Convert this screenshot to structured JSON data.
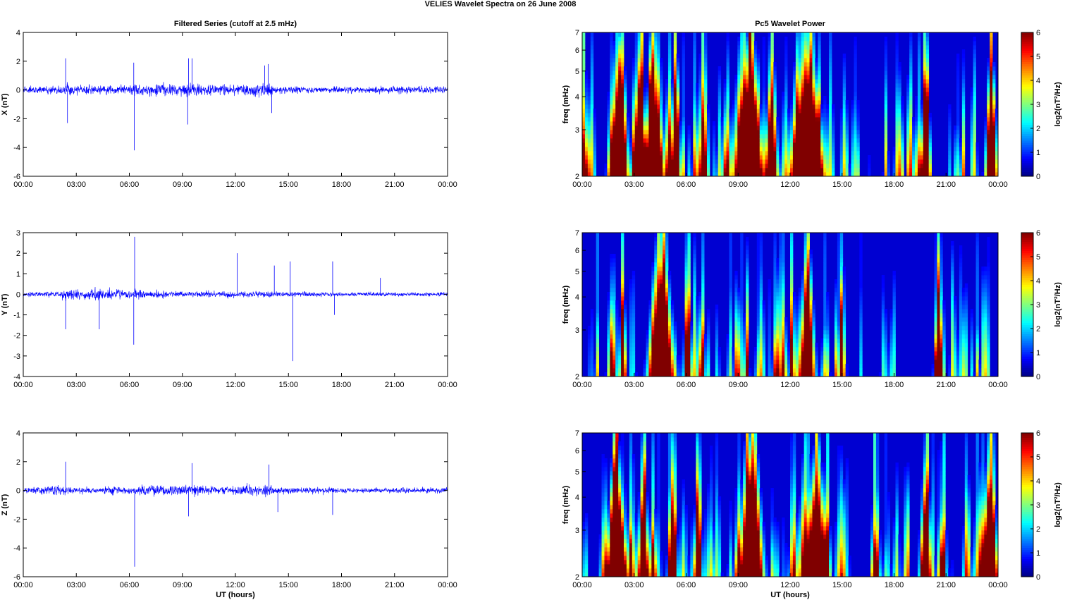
{
  "figure": {
    "suptitle": "VELIES Wavelet Spectra on 26 June      2008",
    "left_title": "Filtered Series (cutoff at 2.5 mHz)",
    "right_title": "Pc5 Wavelet Power"
  },
  "chart_data": [
    {
      "type": "line",
      "title": "Filtered Series (cutoff at 2.5 mHz)",
      "ylabel": "X (nT)",
      "xlabel": "",
      "xlim": [
        0,
        24
      ],
      "ylim": [
        -6,
        4
      ],
      "xtick_labels": [
        "00:00",
        "03:00",
        "06:00",
        "09:00",
        "12:00",
        "15:00",
        "18:00",
        "21:00",
        "00:00"
      ],
      "ytick_labels": [
        "-6",
        "-4",
        "-2",
        "0",
        "2",
        "4"
      ],
      "line_color": "#0000ff",
      "base_amplitude": 0.22,
      "envelope": [
        [
          0,
          0.9
        ],
        [
          2.2,
          1.0
        ],
        [
          2.4,
          1.8
        ],
        [
          3,
          1.0
        ],
        [
          5,
          1.0
        ],
        [
          6.3,
          1.4
        ],
        [
          9.2,
          1.5
        ],
        [
          9.6,
          1.5
        ],
        [
          11,
          1.2
        ],
        [
          12.3,
          1.4
        ],
        [
          13.7,
          1.7
        ],
        [
          14.6,
          0.9
        ],
        [
          16,
          0.7
        ],
        [
          20,
          0.8
        ],
        [
          23.9,
          0.9
        ]
      ],
      "spikes": [
        [
          2.4,
          2.2
        ],
        [
          2.5,
          -2.3
        ],
        [
          6.28,
          -4.2
        ],
        [
          6.25,
          1.9
        ],
        [
          9.35,
          2.2
        ],
        [
          9.3,
          -2.4
        ],
        [
          9.55,
          2.2
        ],
        [
          13.65,
          1.7
        ],
        [
          13.85,
          1.8
        ],
        [
          14.05,
          -1.6
        ],
        [
          24,
          1.2
        ]
      ]
    },
    {
      "type": "line",
      "title": "",
      "ylabel": "Y (nT)",
      "xlabel": "",
      "xlim": [
        0,
        24
      ],
      "ylim": [
        -4,
        3
      ],
      "xtick_labels": [
        "00:00",
        "03:00",
        "06:00",
        "09:00",
        "12:00",
        "15:00",
        "18:00",
        "21:00",
        "00:00"
      ],
      "ytick_labels": [
        "-4",
        "-3",
        "-2",
        "-1",
        "0",
        "1",
        "2",
        "3"
      ],
      "line_color": "#0000ff",
      "base_amplitude": 0.2,
      "envelope": [
        [
          0,
          0.35
        ],
        [
          2,
          0.5
        ],
        [
          2.6,
          1.1
        ],
        [
          3.5,
          0.9
        ],
        [
          4.2,
          1.3
        ],
        [
          5,
          0.9
        ],
        [
          6.3,
          0.8
        ],
        [
          9,
          0.5
        ],
        [
          12,
          0.6
        ],
        [
          15,
          0.5
        ],
        [
          18,
          0.35
        ],
        [
          21,
          0.35
        ],
        [
          23.9,
          0.35
        ]
      ],
      "spikes": [
        [
          2.4,
          -1.7
        ],
        [
          4.3,
          -1.7
        ],
        [
          6.3,
          2.8
        ],
        [
          6.25,
          -2.45
        ],
        [
          12.1,
          2.0
        ],
        [
          14.2,
          1.4
        ],
        [
          15.1,
          1.6
        ],
        [
          15.25,
          -3.25
        ],
        [
          17.5,
          1.6
        ],
        [
          17.6,
          -1.0
        ],
        [
          20.2,
          0.8
        ]
      ]
    },
    {
      "type": "line",
      "title": "",
      "ylabel": "Z (nT)",
      "xlabel": "UT (hours)",
      "xlim": [
        0,
        24
      ],
      "ylim": [
        -6,
        4
      ],
      "xtick_labels": [
        "00:00",
        "03:00",
        "06:00",
        "09:00",
        "12:00",
        "15:00",
        "18:00",
        "21:00",
        "00:00"
      ],
      "ytick_labels": [
        "-6",
        "-4",
        "-2",
        "0",
        "2",
        "4"
      ],
      "line_color": "#0000ff",
      "base_amplitude": 0.2,
      "envelope": [
        [
          0,
          0.6
        ],
        [
          2.3,
          1.6
        ],
        [
          3,
          0.8
        ],
        [
          5,
          0.9
        ],
        [
          6.3,
          1.0
        ],
        [
          9.4,
          1.6
        ],
        [
          10.5,
          1.1
        ],
        [
          12.3,
          1.2
        ],
        [
          13.8,
          1.6
        ],
        [
          14.6,
          0.8
        ],
        [
          16,
          0.8
        ],
        [
          20,
          0.6
        ],
        [
          23.9,
          0.8
        ]
      ],
      "spikes": [
        [
          2.4,
          2.0
        ],
        [
          6.3,
          -5.3
        ],
        [
          9.35,
          -1.8
        ],
        [
          9.55,
          1.9
        ],
        [
          13.9,
          1.8
        ],
        [
          14.4,
          -1.5
        ],
        [
          17.5,
          -1.7
        ],
        [
          24,
          1.4
        ]
      ]
    },
    {
      "type": "heatmap",
      "title": "Pc5 Wavelet Power",
      "ylabel": "freq (mHz)",
      "xlabel": "",
      "xlim": [
        0,
        24
      ],
      "ylim": [
        2,
        7
      ],
      "yscale": "log",
      "xtick_labels": [
        "00:00",
        "03:00",
        "06:00",
        "09:00",
        "12:00",
        "15:00",
        "18:00",
        "21:00",
        "00:00"
      ],
      "ytick_labels": [
        "2",
        "3",
        "4",
        "5",
        "6",
        "7"
      ],
      "colorbar_label": "log2(nT²/Hz)",
      "colorbar_ticks": [
        "0",
        "1",
        "2",
        "3",
        "4",
        "5",
        "6"
      ],
      "clim": [
        0,
        6
      ],
      "colormap": "jet",
      "hot_bands": [
        [
          1.7,
          2.6,
          5.8
        ],
        [
          3.0,
          3.6,
          4.6
        ],
        [
          3.4,
          4.5,
          4.4
        ],
        [
          5.0,
          5.6,
          4.5
        ],
        [
          6.8,
          7.3,
          3.8
        ],
        [
          8.6,
          10.2,
          5.8
        ],
        [
          10.6,
          11.2,
          4.2
        ],
        [
          12.0,
          13.9,
          5.9
        ],
        [
          19.6,
          20.1,
          4.3
        ],
        [
          23.2,
          23.8,
          5.0
        ]
      ]
    },
    {
      "type": "heatmap",
      "title": "",
      "ylabel": "freq (mHz)",
      "xlabel": "",
      "xlim": [
        0,
        24
      ],
      "ylim": [
        2,
        7
      ],
      "yscale": "log",
      "xtick_labels": [
        "00:00",
        "03:00",
        "06:00",
        "09:00",
        "12:00",
        "15:00",
        "18:00",
        "21:00",
        "00:00"
      ],
      "ytick_labels": [
        "2",
        "3",
        "4",
        "5",
        "6",
        "7"
      ],
      "colorbar_label": "log2(nT²/Hz)",
      "colorbar_ticks": [
        "0",
        "1",
        "2",
        "3",
        "4",
        "5",
        "6"
      ],
      "clim": [
        0,
        6
      ],
      "colormap": "jet",
      "hot_bands": [
        [
          2.2,
          2.5,
          4.5
        ],
        [
          3.8,
          5.2,
          5.5
        ],
        [
          5.9,
          6.3,
          4.6
        ],
        [
          8.8,
          9.1,
          3.2
        ],
        [
          12.5,
          13.4,
          4.4
        ],
        [
          14.9,
          15.1,
          5.2
        ],
        [
          20.3,
          20.7,
          3.4
        ]
      ]
    },
    {
      "type": "heatmap",
      "title": "",
      "ylabel": "freq (mHz)",
      "xlabel": "UT (hours)",
      "xlim": [
        0,
        24
      ],
      "ylim": [
        2,
        7
      ],
      "yscale": "log",
      "xtick_labels": [
        "00:00",
        "03:00",
        "06:00",
        "09:00",
        "12:00",
        "15:00",
        "18:00",
        "21:00",
        "00:00"
      ],
      "ytick_labels": [
        "2",
        "3",
        "4",
        "5",
        "6",
        "7"
      ],
      "colorbar_label": "log2(nT²/Hz)",
      "colorbar_ticks": [
        "0",
        "1",
        "2",
        "3",
        "4",
        "5",
        "6"
      ],
      "clim": [
        0,
        6
      ],
      "colormap": "jet",
      "hot_bands": [
        [
          1.6,
          2.6,
          5.7
        ],
        [
          3.2,
          3.8,
          4.3
        ],
        [
          4.9,
          5.4,
          4.0
        ],
        [
          6.5,
          7.0,
          3.6
        ],
        [
          9.0,
          10.4,
          5.6
        ],
        [
          12.3,
          14.0,
          5.7
        ],
        [
          19.6,
          20.1,
          4.0
        ],
        [
          23.1,
          23.8,
          5.2
        ]
      ]
    }
  ]
}
